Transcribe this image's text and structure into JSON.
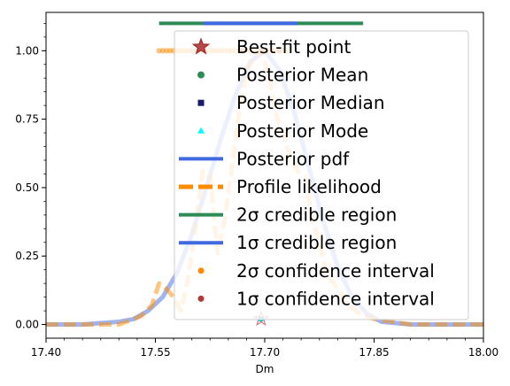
{
  "chart_data": {
    "type": "line",
    "xlabel": "Dm",
    "ylabel": "",
    "xlim": [
      17.4,
      18.0
    ],
    "ylim": [
      -0.05,
      1.14
    ],
    "x_ticks": [
      "17.40",
      "17.55",
      "17.70",
      "17.85",
      "18.00"
    ],
    "x_tick_values": [
      17.4,
      17.55,
      17.7,
      17.85,
      18.0
    ],
    "y_ticks": [
      "0.00",
      "0.25",
      "0.50",
      "0.75",
      "1.00"
    ],
    "y_tick_values": [
      0.0,
      0.25,
      0.5,
      0.75,
      1.0
    ],
    "grid": false,
    "legend_placement": "top-right",
    "colors": {
      "posterior_pdf": "#4169e1",
      "profile_likelihood": "#ff8c00",
      "two_sigma_credible": "#2e8b57",
      "one_sigma_credible": "#4169e1",
      "two_sigma_confidence": "#ff8c00",
      "one_sigma_confidence": "#b03a3a",
      "best_fit": "#a52a2a",
      "posterior_mean": "#2e8b57",
      "posterior_median": "#191970",
      "posterior_mode": "#00ffff"
    },
    "legend": [
      {
        "key": "best_fit",
        "label": "Best-fit point"
      },
      {
        "key": "posterior_mean",
        "label": "Posterior Mean"
      },
      {
        "key": "posterior_median",
        "label": "Posterior Median"
      },
      {
        "key": "posterior_mode",
        "label": "Posterior Mode"
      },
      {
        "key": "posterior_pdf",
        "label": "Posterior pdf"
      },
      {
        "key": "profile_likelihood",
        "label": "Profile likelihood"
      },
      {
        "key": "two_sigma_credible",
        "label": "2σ credible region"
      },
      {
        "key": "one_sigma_credible",
        "label": "1σ credible region"
      },
      {
        "key": "two_sigma_confidence",
        "label": "2σ confidence interval"
      },
      {
        "key": "one_sigma_confidence",
        "label": "1σ confidence interval"
      }
    ],
    "posterior_pdf": {
      "x": [
        17.4,
        17.45,
        17.5,
        17.52,
        17.54,
        17.56,
        17.58,
        17.6,
        17.62,
        17.64,
        17.66,
        17.68,
        17.7,
        17.72,
        17.74,
        17.76,
        17.78,
        17.8,
        17.82,
        17.84,
        17.86,
        17.9,
        17.95,
        18.0
      ],
      "y": [
        0.0,
        0.0,
        0.01,
        0.02,
        0.05,
        0.1,
        0.19,
        0.33,
        0.5,
        0.68,
        0.84,
        0.96,
        1.0,
        0.93,
        0.78,
        0.58,
        0.38,
        0.21,
        0.1,
        0.04,
        0.01,
        0.0,
        0.0,
        0.0
      ]
    },
    "profile_likelihood": {
      "x": [
        17.4,
        17.5,
        17.53,
        17.545,
        17.555,
        17.565,
        17.575,
        17.585,
        17.595,
        17.605,
        17.615,
        17.625,
        17.635,
        17.645,
        17.655,
        17.665,
        17.675,
        17.685,
        17.695,
        17.705,
        17.715,
        17.725,
        17.735,
        17.745,
        17.755,
        17.765,
        17.775,
        17.785,
        17.795,
        17.805,
        17.815,
        17.83,
        17.85,
        17.9,
        18.0
      ],
      "y": [
        0.0,
        0.0,
        0.03,
        0.07,
        0.15,
        0.13,
        0.1,
        0.05,
        0.17,
        0.36,
        0.56,
        0.55,
        0.26,
        0.38,
        0.58,
        0.78,
        0.93,
        0.97,
        1.0,
        0.92,
        0.77,
        0.7,
        0.61,
        0.56,
        0.54,
        0.38,
        0.3,
        0.18,
        0.15,
        0.11,
        0.07,
        0.04,
        0.02,
        0.0,
        0.0
      ]
    },
    "two_sigma_credible": [
      17.555,
      17.835
    ],
    "one_sigma_credible": [
      17.615,
      17.745
    ],
    "two_sigma_confidence_x": [
      17.555,
      17.56,
      17.565,
      17.57,
      17.575,
      17.58,
      17.585,
      17.59,
      17.595,
      17.6,
      17.605,
      17.61,
      17.615,
      17.62,
      17.625,
      17.63,
      17.635,
      17.64,
      17.645,
      17.65,
      17.655,
      17.66,
      17.665,
      17.67,
      17.675,
      17.68,
      17.685,
      17.69,
      17.695,
      17.7,
      17.705,
      17.71,
      17.715,
      17.72,
      17.725,
      17.73
    ],
    "one_sigma_confidence_x": [
      17.67,
      17.695,
      17.72
    ],
    "best_fit": [
      17.695,
      0.02
    ],
    "posterior_mean": [
      17.695,
      0.02
    ],
    "posterior_median": [
      17.695,
      0.02
    ],
    "posterior_mode": [
      17.695,
      0.02
    ]
  }
}
